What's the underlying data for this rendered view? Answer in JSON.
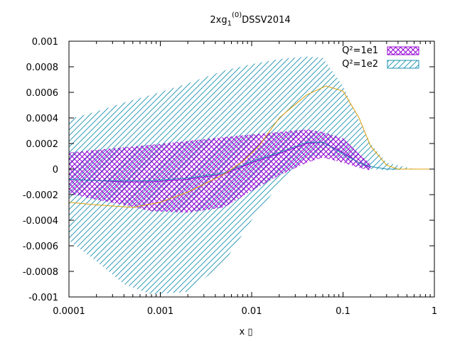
{
  "chart_data": {
    "type": "line",
    "title": {
      "main": "2xg",
      "sub": "1",
      "sup": "(0)",
      "tail": "DSSV2014"
    },
    "xlabel": "x ▯",
    "ylabel": "",
    "xscale": "log",
    "xlim": [
      0.0001,
      1
    ],
    "ylim": [
      -0.001,
      0.001
    ],
    "x_ticks": [
      "0.0001",
      "0.001",
      "0.01",
      "0.1",
      "1"
    ],
    "y_ticks": [
      "0.001",
      "0.0008",
      "0.0006",
      "0.0004",
      "0.0002",
      "0",
      "-0.0002",
      "-0.0004",
      "-0.0006",
      "-0.0008",
      "-0.001"
    ],
    "grid": false,
    "legend_position": "top-right",
    "series": [
      {
        "name": "Q²=1e1",
        "color": "#9400d3",
        "band_hatch": "cross",
        "x": [
          0.0001,
          0.0002,
          0.0004,
          0.0008,
          0.002,
          0.005,
          0.01,
          0.02,
          0.04,
          0.06,
          0.1,
          0.15,
          0.2
        ],
        "y": [
          -8e-05,
          -9e-05,
          -0.0001,
          -0.0001,
          -8e-05,
          -4e-05,
          5e-05,
          0.00012,
          0.0002,
          0.00021,
          0.00013,
          5e-05,
          1e-05
        ],
        "upper": [
          0.00013,
          0.00015,
          0.00017,
          0.00019,
          0.00022,
          0.00025,
          0.00027,
          0.00029,
          0.00031,
          0.00029,
          0.00024,
          0.00012,
          4e-05
        ],
        "lower": [
          -0.00019,
          -0.00024,
          -0.00028,
          -0.00033,
          -0.00034,
          -0.0003,
          -0.00017,
          -5e-05,
          5e-05,
          9e-05,
          5e-05,
          1e-05,
          -1e-05
        ]
      },
      {
        "name": "Q²=1e2",
        "color": "#1a8fb0",
        "band_hatch": "diagonal",
        "x": [
          0.0001,
          0.0002,
          0.0004,
          0.0008,
          0.002,
          0.005,
          0.01,
          0.02,
          0.04,
          0.06,
          0.1,
          0.15,
          0.2,
          0.3,
          0.6
        ],
        "y": [
          -8e-05,
          -9e-05,
          -9e-05,
          -9e-05,
          -7e-05,
          -3e-05,
          6e-05,
          0.00013,
          0.00021,
          0.00021,
          0.00012,
          5e-05,
          2e-05,
          0.0,
          0.0
        ],
        "upper": [
          0.00039,
          0.00045,
          0.00052,
          0.00058,
          0.00067,
          0.00077,
          0.00082,
          0.00086,
          0.00088,
          0.00087,
          0.00065,
          0.00038,
          0.0002,
          5e-05,
          0.0
        ],
        "lower": [
          -0.00056,
          -0.00072,
          -0.0009,
          -0.00098,
          -0.00096,
          -0.00073,
          -0.0004,
          -0.00012,
          8e-05,
          0.00012,
          8e-05,
          2e-05,
          0.0,
          -1e-05,
          0.0
        ]
      },
      {
        "name": "",
        "color": "#e1a00a",
        "x": [
          0.0001,
          0.0002,
          0.0005,
          0.001,
          0.002,
          0.005,
          0.008,
          0.012,
          0.02,
          0.04,
          0.065,
          0.1,
          0.15,
          0.2,
          0.3,
          0.4,
          0.6,
          1.0
        ],
        "y": [
          -0.00026,
          -0.00028,
          -0.0003,
          -0.00026,
          -0.00018,
          -4e-05,
          6e-05,
          0.00018,
          0.0004,
          0.00058,
          0.00065,
          0.00061,
          0.0004,
          0.00018,
          3e-05,
          0.0,
          0.0,
          0.0
        ]
      }
    ]
  }
}
